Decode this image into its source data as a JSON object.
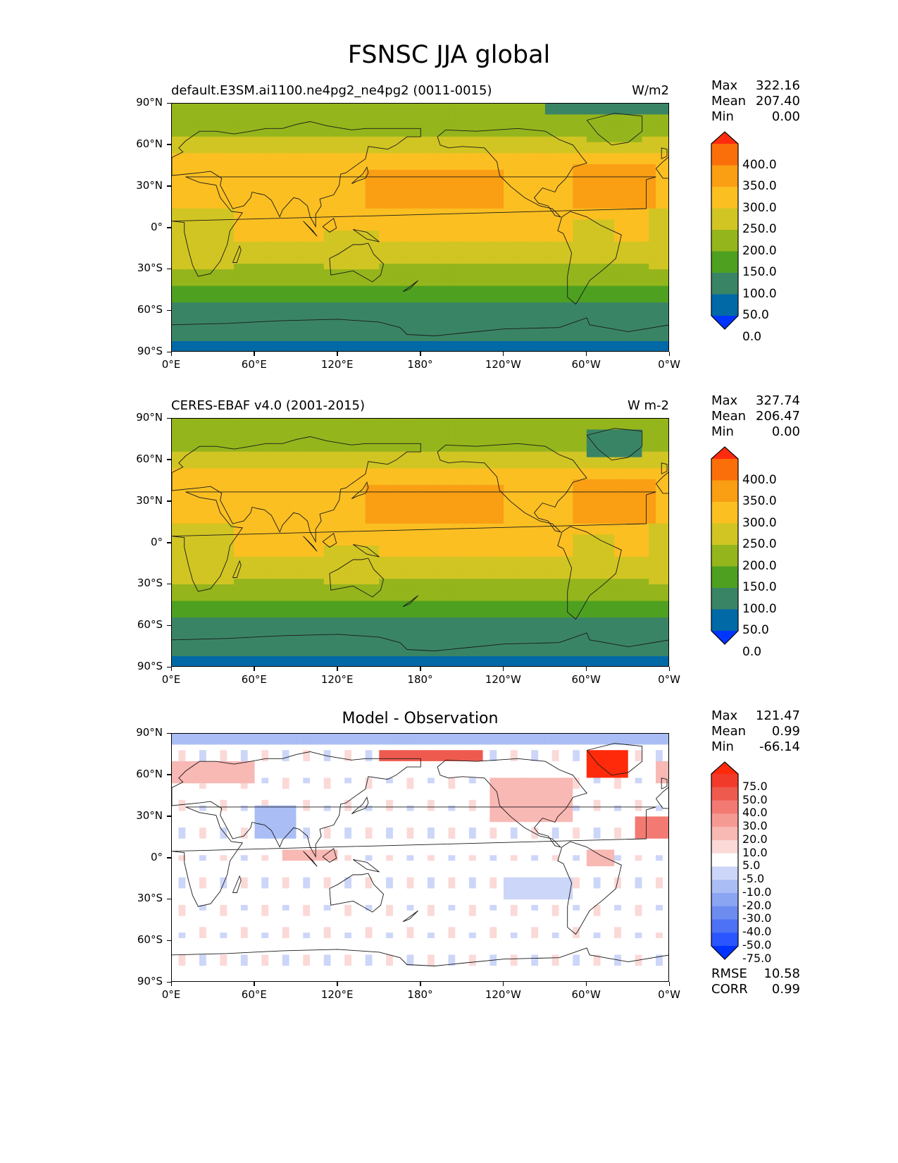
{
  "figure_title": "FSNSC JJA global",
  "x_ticks": [
    "0°E",
    "60°E",
    "120°E",
    "180°",
    "120°W",
    "60°W",
    "0°W"
  ],
  "y_ticks": [
    "90°N",
    "60°N",
    "30°N",
    "0°",
    "30°S",
    "60°S",
    "90°S"
  ],
  "panels": [
    {
      "title": "default.E3SM.ai1100.ne4pg2_ne4pg2 (0011-0015)",
      "units": "W/m2",
      "stats": [
        {
          "label": "Max",
          "value": "322.16"
        },
        {
          "label": "Mean",
          "value": "207.40"
        },
        {
          "label": "Min",
          "value": "0.00"
        }
      ],
      "colorbar_labels": [
        "400.0",
        "350.0",
        "300.0",
        "250.0",
        "200.0",
        "150.0",
        "100.0",
        "50.0",
        "0.0"
      ]
    },
    {
      "title": "CERES-EBAF v4.0 (2001-2015)",
      "units": "W m-2",
      "stats": [
        {
          "label": "Max",
          "value": "327.74"
        },
        {
          "label": "Mean",
          "value": "206.47"
        },
        {
          "label": "Min",
          "value": "0.00"
        }
      ],
      "colorbar_labels": [
        "400.0",
        "350.0",
        "300.0",
        "250.0",
        "200.0",
        "150.0",
        "100.0",
        "50.0",
        "0.0"
      ]
    },
    {
      "title": "Model - Observation",
      "units": "",
      "stats": [
        {
          "label": "Max",
          "value": "121.47"
        },
        {
          "label": "Mean",
          "value": "0.99"
        },
        {
          "label": "Min",
          "value": "-66.14"
        }
      ],
      "colorbar_labels": [
        "75.0",
        "50.0",
        "40.0",
        "30.0",
        "20.0",
        "10.0",
        "5.0",
        "-5.0",
        "-10.0",
        "-20.0",
        "-30.0",
        "-40.0",
        "-50.0",
        "-75.0"
      ],
      "metrics": [
        {
          "label": "RMSE",
          "value": "10.58"
        },
        {
          "label": "CORR",
          "value": "0.99"
        }
      ]
    }
  ],
  "colors": {
    "abs_levels": [
      "#0035ff",
      "#0069a6",
      "#3a8466",
      "#4ea120",
      "#95b51c",
      "#d1c523",
      "#fbbf22",
      "#fa9e13",
      "#fb6f0b",
      "#ff2b0f"
    ],
    "diff_levels": [
      "#0033ff",
      "#2a55ff",
      "#4e72f5",
      "#6c8cf0",
      "#8aa5f2",
      "#aabdf5",
      "#ccd6f8",
      "#ffffff",
      "#fbd9d7",
      "#f8b8b4",
      "#f59a93",
      "#f27a72",
      "#ef5a4f",
      "#f23a2a",
      "#ff2a0a"
    ],
    "continent_line": "#1a1a1a"
  }
}
